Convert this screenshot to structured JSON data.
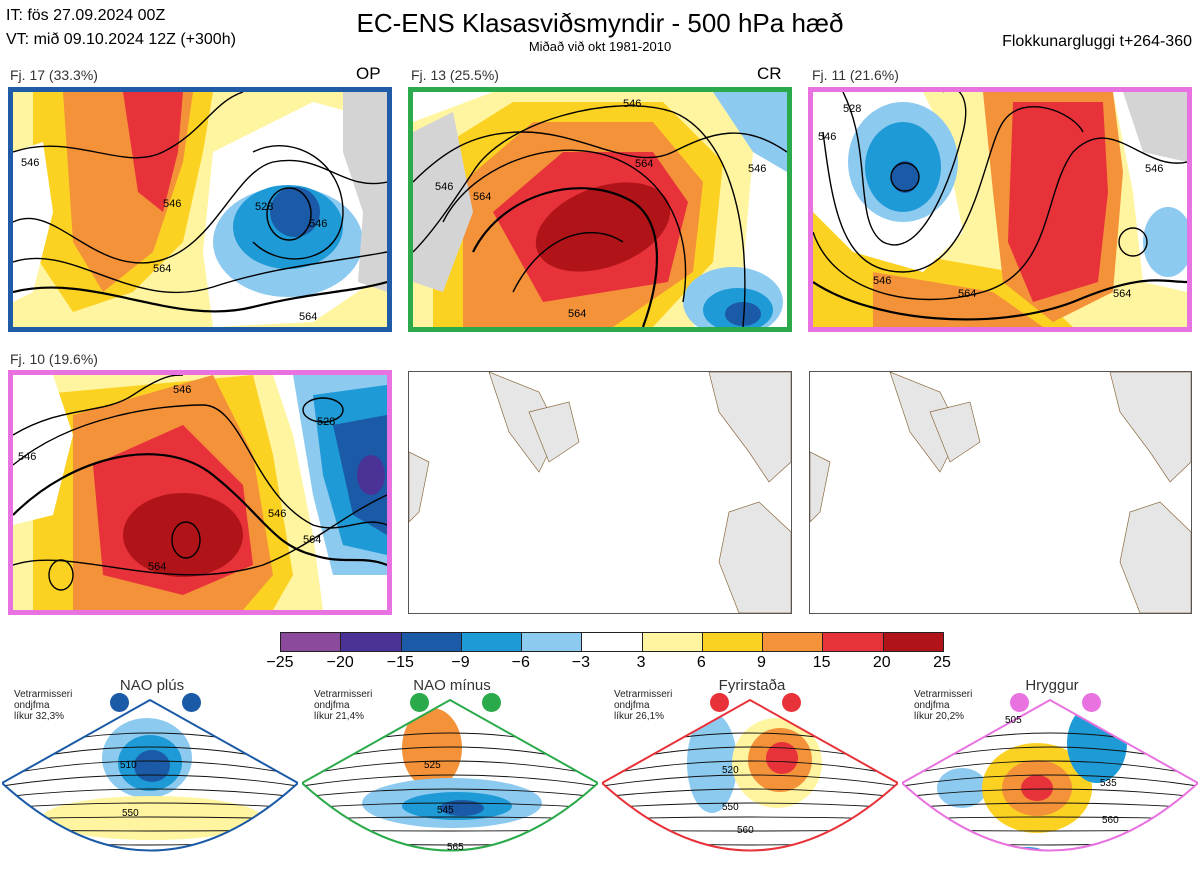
{
  "header": {
    "it_line": "IT: fös 27.09.2024 00Z",
    "vt_line": "VT: mið 09.10.2024 12Z  (+300h)",
    "title": "EC-ENS Klasasviðsmyndir - 500 hPa hæð",
    "subtitle": "Miðað við okt 1981-2010",
    "window": "Flokkunargluggi t+264-360"
  },
  "clusters": [
    {
      "label": "Fj. 17 (33.3%)",
      "tag": "OP",
      "color": "#1f5ba6",
      "contours": [
        "546",
        "546",
        "528",
        "546",
        "564",
        "564"
      ]
    },
    {
      "label": "Fj. 13 (25.5%)",
      "tag": "CR",
      "color": "#2aaa4a",
      "contours": [
        "546",
        "546",
        "564",
        "564",
        "546",
        "564"
      ]
    },
    {
      "label": "Fj. 11 (21.6%)",
      "tag": "",
      "color": "#e872e0",
      "contours": [
        "528",
        "546",
        "546",
        "564",
        "546",
        "564"
      ]
    },
    {
      "label": "Fj. 10 (19.6%)",
      "tag": "",
      "color": "#e872e0",
      "contours": [
        "546",
        "546",
        "528",
        "546",
        "564",
        "564"
      ]
    }
  ],
  "colorbar": {
    "colors": [
      "#8b4a9c",
      "#4a3296",
      "#1a5aa6",
      "#1e9ad6",
      "#8dcaf0",
      "#ffffff",
      "#fff5a0",
      "#fcd222",
      "#f4923a",
      "#e8323a",
      "#b01418"
    ],
    "ticks": [
      "−25",
      "−20",
      "−15",
      "−9",
      "−6",
      "−3",
      "3",
      "6",
      "9",
      "15",
      "20",
      "25"
    ]
  },
  "regimes": [
    {
      "name": "NAO plús",
      "text_line1": "Vetrarmisseri",
      "text_line2": "ondjfma",
      "text_line3": "líkur 32,3%",
      "color": "#1a5aa6",
      "contours": [
        "510",
        "550"
      ]
    },
    {
      "name": "NAO mínus",
      "text_line1": "Vetrarmisseri",
      "text_line2": "ondjfma",
      "text_line3": "líkur 21,4%",
      "color": "#2aaa4a",
      "contours": [
        "525",
        "545",
        "565"
      ]
    },
    {
      "name": "Fyrirstaða",
      "text_line1": "Vetrarmisseri",
      "text_line2": "ondjfma",
      "text_line3": "líkur 26,1%",
      "color": "#e8323a",
      "contours": [
        "520",
        "550",
        "560"
      ]
    },
    {
      "name": "Hryggur",
      "text_line1": "Vetrarmisseri",
      "text_line2": "ondjfma",
      "text_line3": "líkur 20,2%",
      "color": "#e872e0",
      "contours": [
        "505",
        "535",
        "560"
      ]
    }
  ]
}
